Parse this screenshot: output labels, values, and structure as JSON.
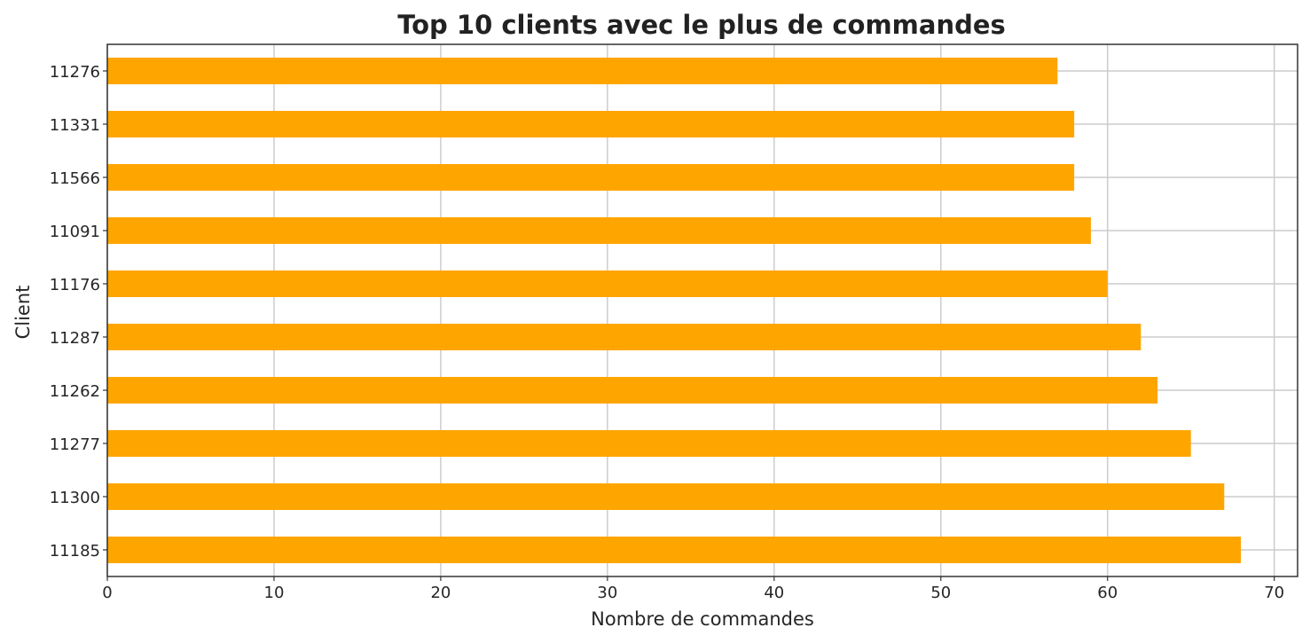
{
  "chart_data": {
    "type": "bar",
    "orientation": "horizontal",
    "title": "Top 10 clients avec le plus de commandes",
    "xlabel": "Nombre de commandes",
    "ylabel": "Client",
    "categories": [
      "11276",
      "11331",
      "11566",
      "11091",
      "11176",
      "11287",
      "11262",
      "11277",
      "11300",
      "11185"
    ],
    "values": [
      57,
      58,
      58,
      59,
      60,
      62,
      63,
      65,
      67,
      68
    ],
    "xlim": [
      0,
      71.4
    ],
    "xticks": [
      0,
      10,
      20,
      30,
      40,
      50,
      60,
      70
    ],
    "grid": true,
    "bar_color": "#FFA500"
  }
}
